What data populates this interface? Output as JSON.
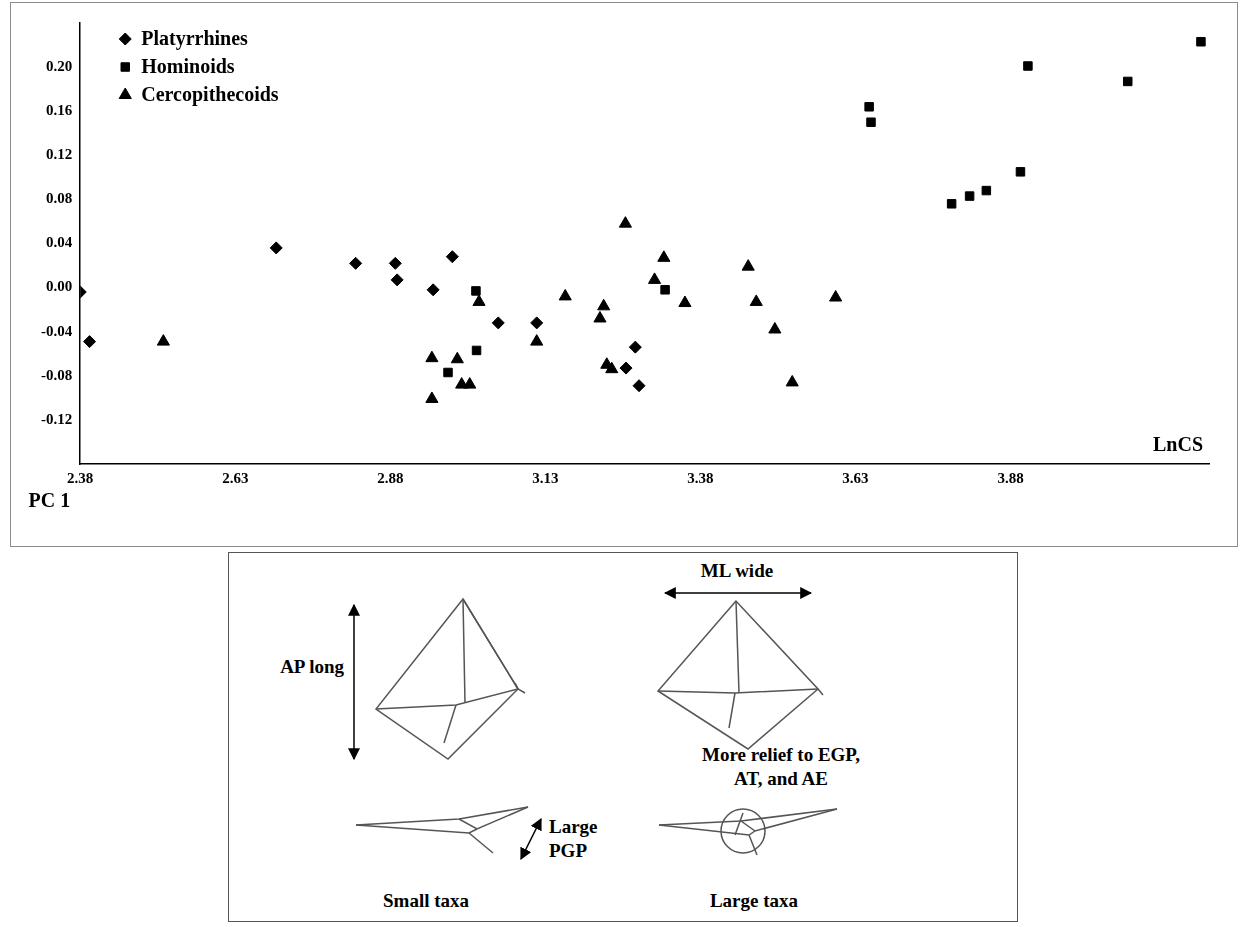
{
  "chart_data": {
    "type": "scatter",
    "x_label": "LnCS",
    "y_label": "PC 1",
    "xlim": [
      2.38,
      4.2
    ],
    "xticks": [
      2.38,
      2.63,
      2.88,
      3.13,
      3.38,
      3.63,
      3.88
    ],
    "ylim": [
      -0.16,
      0.24
    ],
    "yticks": [
      -0.12,
      -0.08,
      -0.04,
      {
        "value": 0,
        "label": "0.00"
      },
      0.04,
      0.08,
      0.12,
      0.16,
      {
        "value": 0.2,
        "label": "0.20"
      }
    ],
    "grid": false,
    "legend": "upper left",
    "series": [
      {
        "name": "Platyrrhines",
        "color": "#000000",
        "marker": "diamond",
        "x": [
          2.38,
          2.395,
          2.696,
          2.824,
          2.888,
          2.891,
          2.949,
          2.98,
          3.054,
          3.116,
          3.26,
          3.275,
          3.281
        ],
        "values": [
          -0.004,
          -0.049,
          0.036,
          0.022,
          0.022,
          0.007,
          -0.002,
          0.028,
          -0.032,
          -0.032,
          -0.073,
          -0.054,
          -0.089
        ]
      },
      {
        "name": "Hominoids",
        "color": "#000000",
        "marker": "square",
        "x": [
          4.187,
          4.069,
          3.908,
          3.652,
          3.655,
          3.896,
          3.841,
          3.814,
          3.785,
          3.018,
          3.323,
          3.019,
          2.973
        ],
        "values": [
          0.223,
          0.187,
          0.201,
          0.164,
          0.15,
          0.105,
          0.088,
          0.083,
          0.076,
          -0.003,
          -0.002,
          -0.057,
          -0.077
        ]
      },
      {
        "name": "Cercopithecoids",
        "color": "#000000",
        "marker": "triangle",
        "x": [
          2.514,
          3.259,
          3.321,
          3.306,
          3.457,
          3.598,
          3.162,
          3.355,
          3.224,
          3.47,
          3.218,
          3.5,
          3.023,
          3.116,
          2.947,
          2.988,
          2.995,
          3.008,
          2.947,
          3.229,
          3.237,
          3.528
        ],
        "values": [
          -0.049,
          0.058,
          0.027,
          0.007,
          0.019,
          -0.009,
          -0.008,
          -0.014,
          -0.017,
          -0.013,
          -0.028,
          -0.038,
          -0.013,
          -0.049,
          -0.064,
          -0.065,
          -0.088,
          -0.088,
          -0.101,
          -0.07,
          -0.074,
          -0.086
        ]
      }
    ]
  },
  "inset": {
    "ap_label": "AP long",
    "ml_label": "ML wide",
    "pgp_label": "Large PGP",
    "relief_label": "More relief to EGP, AT, and AE",
    "small_caption": "Small taxa",
    "large_caption": "Large taxa"
  }
}
